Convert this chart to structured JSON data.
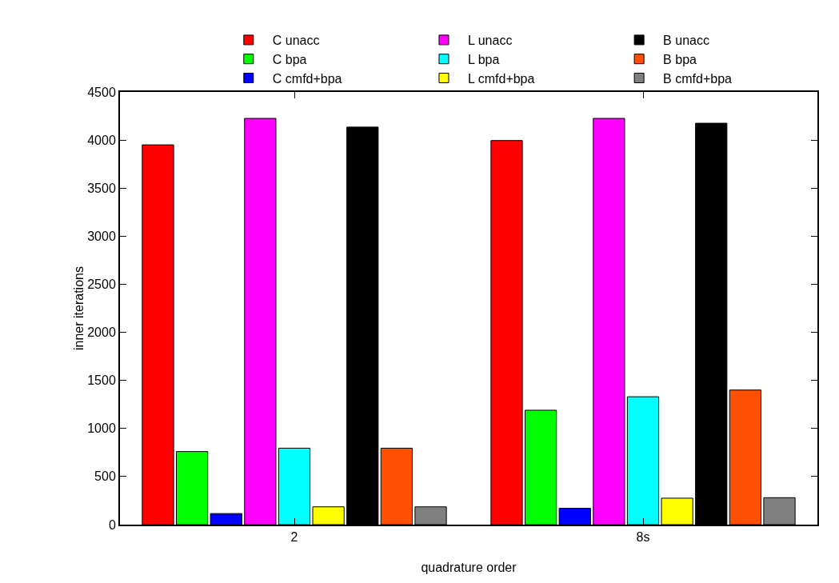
{
  "chart_data": {
    "type": "bar",
    "xlabel": "quadrature order",
    "ylabel": "inner iterations",
    "categories": [
      "2",
      "8s"
    ],
    "series": [
      {
        "name": "C unacc",
        "color": "#ff0000",
        "values": [
          3950,
          3995
        ]
      },
      {
        "name": "C bpa",
        "color": "#00ff00",
        "values": [
          760,
          1190
        ]
      },
      {
        "name": "C cmfd+bpa",
        "color": "#0000ff",
        "values": [
          115,
          170
        ]
      },
      {
        "name": "L unacc",
        "color": "#ff00ff",
        "values": [
          4225,
          4225
        ]
      },
      {
        "name": "L bpa",
        "color": "#00ffff",
        "values": [
          795,
          1330
        ]
      },
      {
        "name": "L cmfd+bpa",
        "color": "#ffff00",
        "values": [
          185,
          275
        ]
      },
      {
        "name": "B unacc",
        "color": "#000000",
        "values": [
          4135,
          4175
        ]
      },
      {
        "name": "B bpa",
        "color": "#ff4f00",
        "values": [
          795,
          1400
        ]
      },
      {
        "name": "B cmfd+bpa",
        "color": "#808080",
        "values": [
          185,
          280
        ]
      }
    ],
    "ylim": [
      0,
      4500
    ],
    "yticks": [
      0,
      500,
      1000,
      1500,
      2000,
      2500,
      3000,
      3500,
      4000,
      4500
    ],
    "grid": false,
    "legend": "top"
  }
}
